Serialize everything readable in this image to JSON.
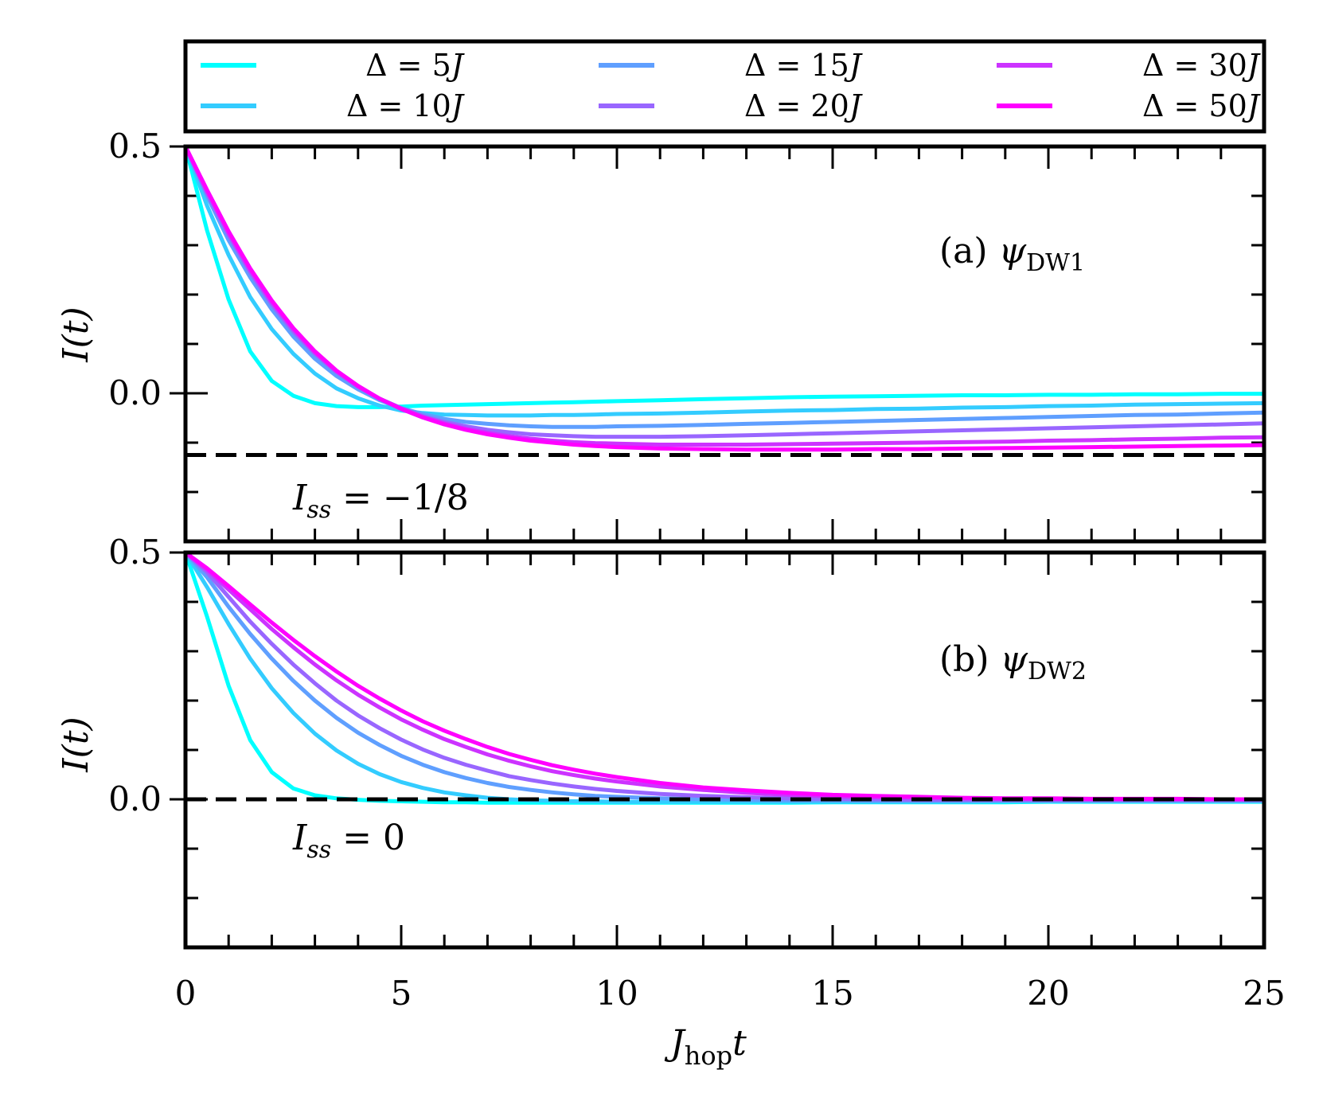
{
  "chart_data": {
    "type": "line",
    "shared_x": {
      "label_main": "J",
      "label_sub": "hop",
      "label_tail": "t",
      "xlim": [
        0,
        25
      ],
      "ticks": [
        0,
        5,
        10,
        15,
        20,
        25
      ],
      "tick_labels": [
        "0",
        "5",
        "10",
        "15",
        "20",
        "25"
      ],
      "minor_ticks": [
        1,
        2,
        3,
        4,
        6,
        7,
        8,
        9,
        11,
        12,
        13,
        14,
        16,
        17,
        18,
        19,
        21,
        22,
        23,
        24
      ]
    },
    "legend": {
      "placement": "top",
      "entries": [
        {
          "prefix": "Δ = ",
          "value": "5",
          "unit": "J",
          "color": "#00ffff"
        },
        {
          "prefix": "Δ = ",
          "value": "15",
          "unit": "J",
          "color": "#5f9fff"
        },
        {
          "prefix": "Δ = ",
          "value": "30",
          "unit": "J",
          "color": "#cc33ff"
        },
        {
          "prefix": "Δ = ",
          "value": "10",
          "unit": "J",
          "color": "#33ccff"
        },
        {
          "prefix": "Δ = ",
          "value": "20",
          "unit": "J",
          "color": "#9966ff"
        },
        {
          "prefix": "Δ = ",
          "value": "50",
          "unit": "J",
          "color": "#ff00ff"
        }
      ]
    },
    "panels": [
      {
        "id": "a",
        "label_prefix": "(a) ",
        "label_psi": "ψ",
        "label_sub": "DW1",
        "ylabel": "I(t)",
        "ylim": [
          -0.3,
          0.5
        ],
        "yticks": [
          0.5,
          0.0
        ],
        "ytick_labels": [
          "0.5",
          "0.0"
        ],
        "minor_yticks": [
          0.4,
          0.3,
          0.2,
          0.1,
          -0.1,
          -0.2
        ],
        "ref_line": {
          "y": -0.125,
          "text_prefix": "I",
          "text_sub": "ss",
          "text_tail": " = −1/8"
        },
        "x": [
          0,
          0.5,
          1,
          1.5,
          2,
          2.5,
          3,
          3.5,
          4,
          4.5,
          5,
          5.5,
          6,
          6.5,
          7,
          7.5,
          8,
          8.5,
          9,
          9.5,
          10,
          11,
          12,
          13,
          14,
          15,
          16,
          17,
          18,
          19,
          20,
          21,
          22,
          23,
          24,
          25
        ],
        "series": [
          {
            "name": "Δ = 5J",
            "color": "#00ffff",
            "values": [
              0.5,
              0.33,
              0.19,
              0.085,
              0.025,
              -0.005,
              -0.02,
              -0.026,
              -0.028,
              -0.028,
              -0.027,
              -0.025,
              -0.024,
              -0.023,
              -0.022,
              -0.021,
              -0.02,
              -0.019,
              -0.018,
              -0.017,
              -0.016,
              -0.014,
              -0.012,
              -0.01,
              -0.008,
              -0.007,
              -0.006,
              -0.005,
              -0.004,
              -0.004,
              -0.003,
              -0.003,
              -0.002,
              -0.002,
              -0.001,
              -0.001
            ]
          },
          {
            "name": "Δ = 10J",
            "color": "#33ccff",
            "values": [
              0.5,
              0.38,
              0.28,
              0.195,
              0.13,
              0.08,
              0.04,
              0.01,
              -0.01,
              -0.025,
              -0.035,
              -0.04,
              -0.043,
              -0.044,
              -0.045,
              -0.045,
              -0.045,
              -0.044,
              -0.044,
              -0.043,
              -0.042,
              -0.041,
              -0.039,
              -0.037,
              -0.035,
              -0.034,
              -0.032,
              -0.031,
              -0.029,
              -0.028,
              -0.026,
              -0.025,
              -0.023,
              -0.022,
              -0.021,
              -0.02
            ]
          },
          {
            "name": "Δ = 15J",
            "color": "#5f9fff",
            "values": [
              0.5,
              0.4,
              0.31,
              0.235,
              0.17,
              0.115,
              0.07,
              0.035,
              0.008,
              -0.014,
              -0.03,
              -0.042,
              -0.052,
              -0.058,
              -0.062,
              -0.065,
              -0.067,
              -0.068,
              -0.068,
              -0.068,
              -0.067,
              -0.066,
              -0.064,
              -0.062,
              -0.06,
              -0.058,
              -0.056,
              -0.054,
              -0.052,
              -0.05,
              -0.048,
              -0.046,
              -0.044,
              -0.043,
              -0.041,
              -0.039
            ]
          },
          {
            "name": "Δ = 20J",
            "color": "#9966ff",
            "values": [
              0.5,
              0.405,
              0.32,
              0.245,
              0.18,
              0.125,
              0.08,
              0.043,
              0.013,
              -0.011,
              -0.03,
              -0.046,
              -0.058,
              -0.067,
              -0.074,
              -0.079,
              -0.083,
              -0.085,
              -0.087,
              -0.088,
              -0.088,
              -0.088,
              -0.087,
              -0.085,
              -0.083,
              -0.081,
              -0.079,
              -0.077,
              -0.075,
              -0.073,
              -0.071,
              -0.069,
              -0.067,
              -0.065,
              -0.063,
              -0.061
            ]
          },
          {
            "name": "Δ = 30J",
            "color": "#cc33ff",
            "values": [
              0.5,
              0.41,
              0.325,
              0.25,
              0.185,
              0.13,
              0.083,
              0.045,
              0.014,
              -0.011,
              -0.031,
              -0.048,
              -0.061,
              -0.072,
              -0.08,
              -0.087,
              -0.092,
              -0.096,
              -0.099,
              -0.101,
              -0.102,
              -0.104,
              -0.104,
              -0.104,
              -0.103,
              -0.102,
              -0.101,
              -0.1,
              -0.099,
              -0.098,
              -0.096,
              -0.095,
              -0.093,
              -0.092,
              -0.09,
              -0.089
            ]
          },
          {
            "name": "Δ = 50J",
            "color": "#ff00ff",
            "values": [
              0.5,
              0.412,
              0.328,
              0.253,
              0.188,
              0.132,
              0.085,
              0.046,
              0.015,
              -0.011,
              -0.032,
              -0.049,
              -0.063,
              -0.074,
              -0.083,
              -0.09,
              -0.096,
              -0.1,
              -0.104,
              -0.107,
              -0.109,
              -0.112,
              -0.113,
              -0.114,
              -0.114,
              -0.114,
              -0.113,
              -0.113,
              -0.112,
              -0.111,
              -0.11,
              -0.109,
              -0.108,
              -0.107,
              -0.106,
              -0.105
            ]
          }
        ]
      },
      {
        "id": "b",
        "label_prefix": "(b) ",
        "label_psi": "ψ",
        "label_sub": "DW2",
        "ylabel": "I(t)",
        "ylim": [
          -0.3,
          0.5
        ],
        "yticks": [
          0.5,
          0.0
        ],
        "ytick_labels": [
          "0.5",
          "0.0"
        ],
        "minor_yticks": [
          0.4,
          0.3,
          0.2,
          0.1,
          -0.1,
          -0.2
        ],
        "ref_line": {
          "y": 0.0,
          "text_prefix": "I",
          "text_sub": "ss",
          "text_tail": " = 0"
        },
        "x": [
          0,
          0.5,
          1,
          1.5,
          2,
          2.5,
          3,
          3.5,
          4,
          4.5,
          5,
          5.5,
          6,
          6.5,
          7,
          7.5,
          8,
          8.5,
          9,
          9.5,
          10,
          11,
          12,
          13,
          14,
          15,
          16,
          17,
          18,
          19,
          20,
          21,
          22,
          23,
          24,
          25
        ],
        "series": [
          {
            "name": "Δ = 5J",
            "color": "#00ffff",
            "values": [
              0.5,
              0.37,
              0.23,
              0.12,
              0.055,
              0.022,
              0.008,
              0.002,
              -0.001,
              -0.003,
              -0.004,
              -0.005,
              -0.006,
              -0.006,
              -0.007,
              -0.007,
              -0.007,
              -0.007,
              -0.007,
              -0.007,
              -0.007,
              -0.007,
              -0.007,
              -0.007,
              -0.007,
              -0.006,
              -0.006,
              -0.006,
              -0.006,
              -0.006,
              -0.005,
              -0.005,
              -0.005,
              -0.005,
              -0.005,
              -0.005
            ]
          },
          {
            "name": "Δ = 10J",
            "color": "#33ccff",
            "values": [
              0.5,
              0.43,
              0.355,
              0.285,
              0.225,
              0.175,
              0.133,
              0.099,
              0.072,
              0.051,
              0.035,
              0.023,
              0.014,
              0.008,
              0.003,
              0.0,
              -0.002,
              -0.003,
              -0.004,
              -0.004,
              -0.005,
              -0.005,
              -0.005,
              -0.005,
              -0.005,
              -0.005,
              -0.005,
              -0.005,
              -0.005,
              -0.004,
              -0.004,
              -0.004,
              -0.004,
              -0.004,
              -0.004,
              -0.004
            ]
          },
          {
            "name": "Δ = 15J",
            "color": "#5f9fff",
            "values": [
              0.5,
              0.45,
              0.39,
              0.335,
              0.285,
              0.24,
              0.2,
              0.165,
              0.135,
              0.11,
              0.088,
              0.07,
              0.055,
              0.043,
              0.033,
              0.025,
              0.019,
              0.014,
              0.01,
              0.007,
              0.005,
              0.002,
              0.0,
              -0.001,
              -0.002,
              -0.002,
              -0.003,
              -0.003,
              -0.003,
              -0.003,
              -0.003,
              -0.003,
              -0.003,
              -0.003,
              -0.003,
              -0.003
            ]
          },
          {
            "name": "Δ = 20J",
            "color": "#9966ff",
            "values": [
              0.5,
              0.46,
              0.41,
              0.36,
              0.315,
              0.273,
              0.235,
              0.2,
              0.17,
              0.144,
              0.121,
              0.101,
              0.084,
              0.07,
              0.058,
              0.047,
              0.039,
              0.032,
              0.026,
              0.021,
              0.017,
              0.011,
              0.007,
              0.004,
              0.002,
              0.001,
              0.0,
              -0.001,
              -0.001,
              -0.001,
              -0.001,
              -0.001,
              -0.001,
              -0.001,
              -0.001,
              -0.001
            ]
          },
          {
            "name": "Δ = 30J",
            "color": "#cc33ff",
            "values": [
              0.5,
              0.465,
              0.425,
              0.385,
              0.345,
              0.308,
              0.273,
              0.241,
              0.212,
              0.186,
              0.162,
              0.141,
              0.122,
              0.106,
              0.091,
              0.078,
              0.067,
              0.057,
              0.049,
              0.042,
              0.036,
              0.026,
              0.019,
              0.013,
              0.009,
              0.006,
              0.004,
              0.003,
              0.002,
              0.001,
              0.001,
              0.0,
              0.0,
              0.0,
              0.0,
              0.0
            ]
          },
          {
            "name": "Δ = 50J",
            "color": "#ff00ff",
            "values": [
              0.5,
              0.468,
              0.432,
              0.395,
              0.358,
              0.323,
              0.29,
              0.259,
              0.23,
              0.204,
              0.18,
              0.158,
              0.139,
              0.122,
              0.106,
              0.092,
              0.08,
              0.069,
              0.06,
              0.052,
              0.045,
              0.033,
              0.024,
              0.018,
              0.013,
              0.009,
              0.007,
              0.005,
              0.003,
              0.002,
              0.002,
              0.001,
              0.001,
              0.001,
              0.0,
              0.0
            ]
          }
        ]
      }
    ]
  }
}
